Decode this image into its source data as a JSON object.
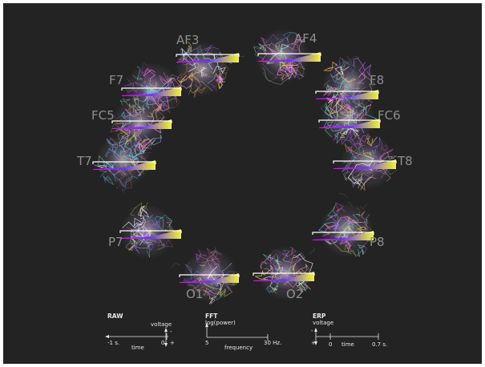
{
  "colors": {
    "background": "#232323",
    "label": "#8e8e8e",
    "legend_text": "#e8e8e8",
    "gradient": [
      "#ff00ff",
      "#6633ff",
      "#ffff33"
    ]
  },
  "channels": [
    {
      "name": "AF3"
    },
    {
      "name": "AF4"
    },
    {
      "name": "F7"
    },
    {
      "name": "F8"
    },
    {
      "name": "FC5"
    },
    {
      "name": "FC6"
    },
    {
      "name": "T7"
    },
    {
      "name": "T8"
    },
    {
      "name": "P7"
    },
    {
      "name": "P8"
    },
    {
      "name": "O1"
    },
    {
      "name": "O2"
    }
  ],
  "legend": {
    "raw": {
      "title": "RAW",
      "y_label": "voltage",
      "x_label": "time",
      "x_start": "-1 s.",
      "x_end": "0",
      "minus": "-",
      "plus": "+"
    },
    "fft": {
      "title": "FFT",
      "y_label": "log(power)",
      "x_label": "frequency",
      "x_start": "5",
      "x_end": "30 Hz."
    },
    "erp": {
      "title": "ERP",
      "y_label": "voltage",
      "x_label": "time",
      "x_start": "0",
      "x_end": "0.7 s.",
      "minus": "-",
      "plus": "+"
    }
  }
}
